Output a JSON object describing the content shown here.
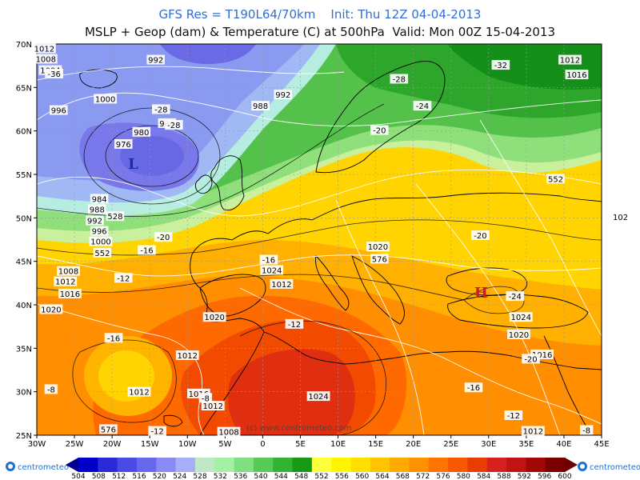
{
  "title_line1": "GFS Res = T190L64/70km    Init: Thu 12Z 04-04-2013",
  "title_line2": "MSLP + Geop (dam) & Temperature (C) at 500hPa  Valid: Mon 00Z 15-04-2013",
  "lat_ticks": [
    "70N",
    "65N",
    "60N",
    "55N",
    "50N",
    "45N",
    "40N",
    "35N",
    "30N",
    "25N"
  ],
  "lon_ticks": [
    "30W",
    "25W",
    "20W",
    "15W",
    "10W",
    "5W",
    "0",
    "5E",
    "10E",
    "15E",
    "20E",
    "25E",
    "30E",
    "35E",
    "40E",
    "45E"
  ],
  "pressure_labels": [
    {
      "text": "1012",
      "lon": -29.0,
      "lat": 69.5
    },
    {
      "text": "1008",
      "lon": -28.8,
      "lat": 68.3
    },
    {
      "text": "1004",
      "lon": -28.2,
      "lat": 67.0
    },
    {
      "text": "992",
      "lon": -14.2,
      "lat": 68.2
    },
    {
      "text": "1000",
      "lon": -20.9,
      "lat": 63.7
    },
    {
      "text": "996",
      "lon": -27.1,
      "lat": 62.4
    },
    {
      "text": "988",
      "lon": -0.3,
      "lat": 62.9
    },
    {
      "text": "992",
      "lon": 2.7,
      "lat": 64.2
    },
    {
      "text": "984",
      "lon": -12.7,
      "lat": 60.9
    },
    {
      "text": "980",
      "lon": -16.1,
      "lat": 59.9
    },
    {
      "text": "976",
      "lon": -18.5,
      "lat": 58.5
    },
    {
      "text": "984",
      "lon": -21.7,
      "lat": 52.2
    },
    {
      "text": "988",
      "lon": -22.0,
      "lat": 51.0
    },
    {
      "text": "992",
      "lon": -22.3,
      "lat": 49.7
    },
    {
      "text": "996",
      "lon": -21.7,
      "lat": 48.5
    },
    {
      "text": "1000",
      "lon": -21.5,
      "lat": 47.3
    },
    {
      "text": "1008",
      "lon": -25.8,
      "lat": 43.9
    },
    {
      "text": "1012",
      "lon": -26.2,
      "lat": 42.7
    },
    {
      "text": "1016",
      "lon": -25.6,
      "lat": 41.3
    },
    {
      "text": "1020",
      "lon": -28.1,
      "lat": 39.5
    },
    {
      "text": "1012",
      "lon": 2.5,
      "lat": 42.4
    },
    {
      "text": "1020",
      "lon": -6.4,
      "lat": 38.6
    },
    {
      "text": "1024",
      "lon": 1.2,
      "lat": 44.0
    },
    {
      "text": "1020",
      "lon": 15.3,
      "lat": 46.7
    },
    {
      "text": "1024",
      "lon": 34.3,
      "lat": 38.6
    },
    {
      "text": "1020",
      "lon": 34.0,
      "lat": 36.6
    },
    {
      "text": "1016",
      "lon": 37.1,
      "lat": 34.3
    },
    {
      "text": "1012",
      "lon": -10.0,
      "lat": 34.2
    },
    {
      "text": "1012",
      "lon": -16.4,
      "lat": 30.0
    },
    {
      "text": "1016",
      "lon": -8.5,
      "lat": 29.8
    },
    {
      "text": "1012",
      "lon": -6.6,
      "lat": 28.4
    },
    {
      "text": "1008",
      "lon": -4.5,
      "lat": 25.4
    },
    {
      "text": "1024",
      "lon": 7.4,
      "lat": 29.5
    },
    {
      "text": "1012",
      "lon": 35.9,
      "lat": 25.5
    },
    {
      "text": "1012",
      "lon": 40.8,
      "lat": 68.2
    },
    {
      "text": "1016",
      "lon": 41.7,
      "lat": 66.5
    },
    {
      "text": "102",
      "lon": 47.5,
      "lat": 50.1
    }
  ],
  "temperature_labels": [
    {
      "text": "-36",
      "lon": -27.7,
      "lat": 66.6
    },
    {
      "text": "-32",
      "lon": 31.6,
      "lat": 67.6
    },
    {
      "text": "-28",
      "lon": 18.1,
      "lat": 66.0
    },
    {
      "text": "-24",
      "lon": 21.2,
      "lat": 62.9
    },
    {
      "text": "-20",
      "lon": 15.5,
      "lat": 60.1
    },
    {
      "text": "-28",
      "lon": -13.5,
      "lat": 62.5
    },
    {
      "text": "-28",
      "lon": -11.8,
      "lat": 60.7
    },
    {
      "text": "-20",
      "lon": -13.2,
      "lat": 47.8
    },
    {
      "text": "-16",
      "lon": -15.4,
      "lat": 46.3
    },
    {
      "text": "-12",
      "lon": -18.5,
      "lat": 43.1
    },
    {
      "text": "-16",
      "lon": -19.8,
      "lat": 36.2
    },
    {
      "text": "-12",
      "lon": 4.2,
      "lat": 37.8
    },
    {
      "text": "-16",
      "lon": 0.8,
      "lat": 45.2
    },
    {
      "text": "-20",
      "lon": 28.9,
      "lat": 48.0
    },
    {
      "text": "-24",
      "lon": 33.5,
      "lat": 41.0
    },
    {
      "text": "-20",
      "lon": 35.6,
      "lat": 33.8
    },
    {
      "text": "-16",
      "lon": 28.0,
      "lat": 30.5
    },
    {
      "text": "-12",
      "lon": 33.3,
      "lat": 27.3
    },
    {
      "text": "-8",
      "lon": -7.6,
      "lat": 29.3
    },
    {
      "text": "-8",
      "lon": -28.1,
      "lat": 30.3
    },
    {
      "text": "-12",
      "lon": -14.0,
      "lat": 25.5
    },
    {
      "text": "-8",
      "lon": 43.0,
      "lat": 25.6
    }
  ],
  "geopotential_labels": [
    {
      "text": "528",
      "lon": -19.6,
      "lat": 50.2
    },
    {
      "text": "552",
      "lon": -21.3,
      "lat": 46.0
    },
    {
      "text": "576",
      "lon": 15.5,
      "lat": 45.3
    },
    {
      "text": "552",
      "lon": 38.9,
      "lat": 54.5
    },
    {
      "text": "576",
      "lon": -20.5,
      "lat": 25.7
    }
  ],
  "centers": [
    {
      "text": "L",
      "lon": -17.2,
      "lat": 56.2,
      "color": "#1c2ca8"
    },
    {
      "text": "H",
      "lon": 29.0,
      "lat": 41.4,
      "color": "#c81e1e"
    }
  ],
  "watermark": "(c) www.centrometeo.com",
  "colorbar_values": [
    "504",
    "508",
    "512",
    "516",
    "520",
    "524",
    "528",
    "532",
    "536",
    "540",
    "544",
    "548",
    "552",
    "556",
    "560",
    "564",
    "568",
    "572",
    "576",
    "580",
    "584",
    "588",
    "592",
    "596",
    "600"
  ],
  "colorbar_colors": [
    "#0000c8",
    "#2a2ad8",
    "#4a4ae4",
    "#6868ee",
    "#8a8af4",
    "#a6aef8",
    "#bfe8c4",
    "#a6f0a6",
    "#7ee07e",
    "#56cc56",
    "#32b432",
    "#169a16",
    "#ffff3c",
    "#fff500",
    "#ffde00",
    "#ffc400",
    "#ffaa00",
    "#ff9000",
    "#ff7400",
    "#f85800",
    "#e83c00",
    "#d82020",
    "#c01414",
    "#a00808",
    "#7a0000"
  ],
  "logo_text": "centrometeo",
  "colors": {
    "low": "#1c2ca8",
    "high": "#c81e1e",
    "title1": "#2f6fd6"
  }
}
